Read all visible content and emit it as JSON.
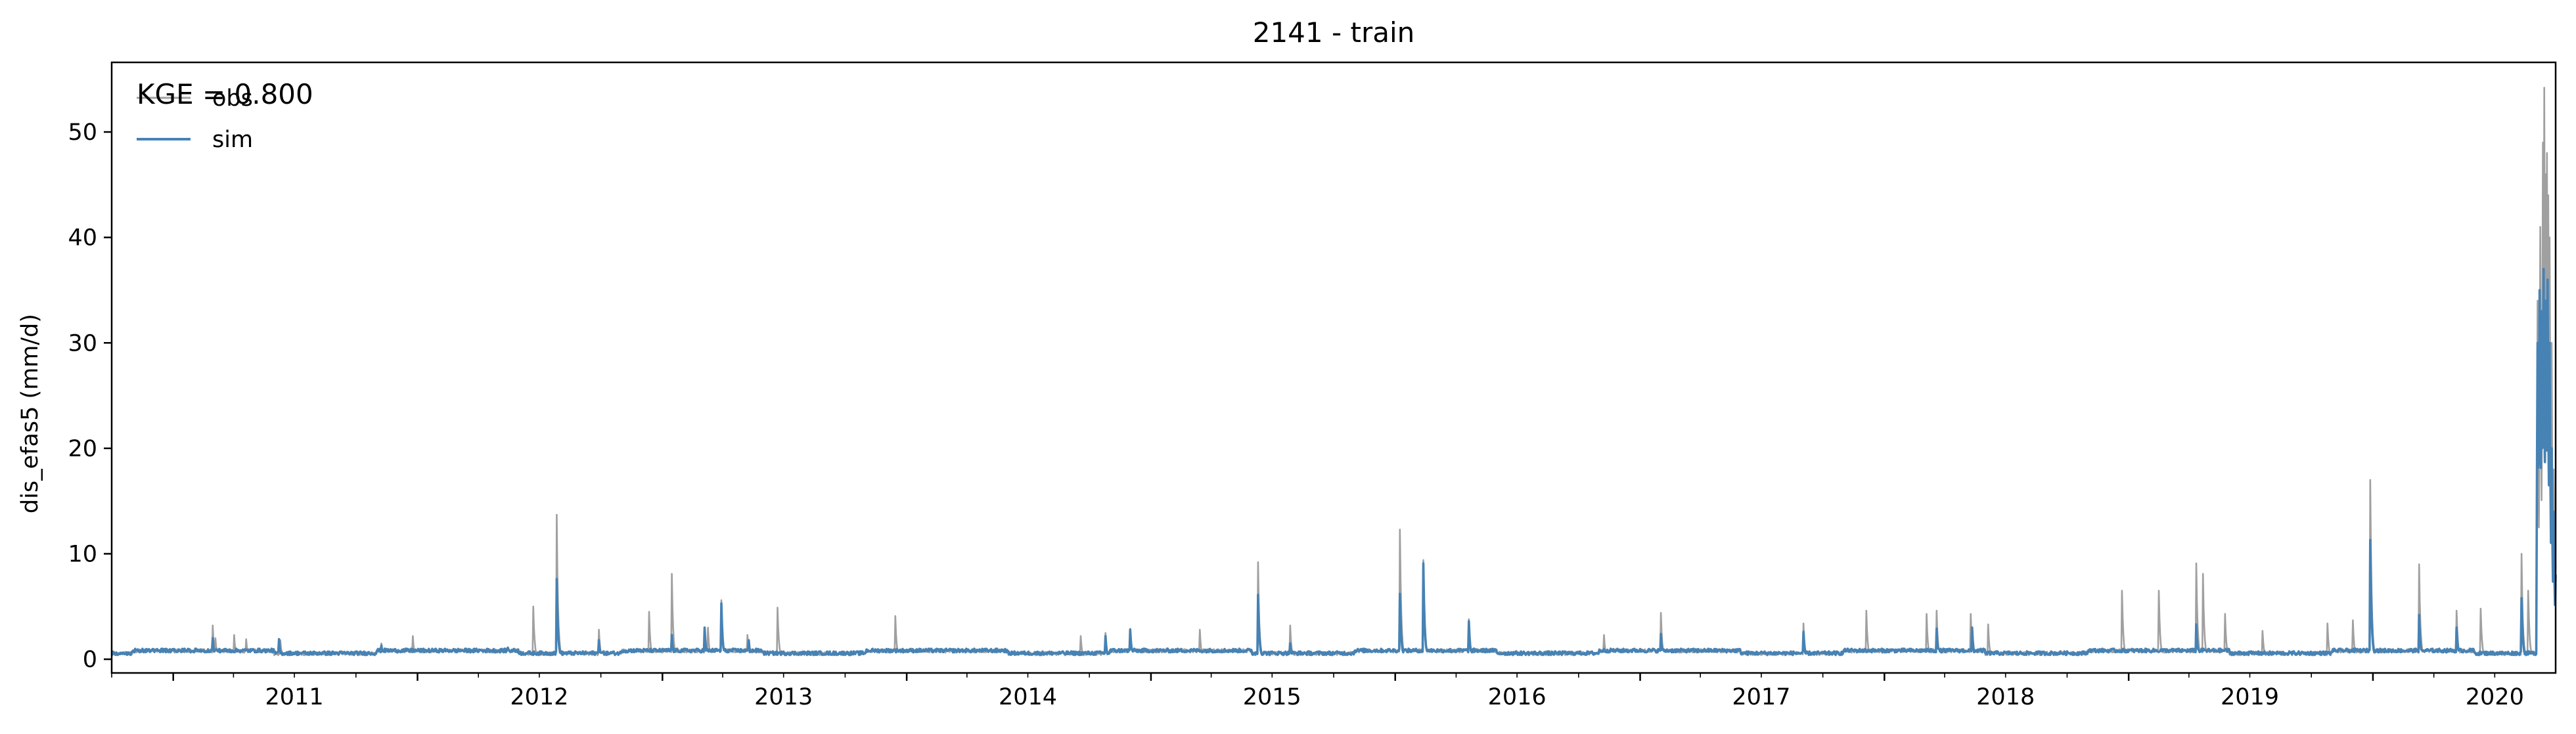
{
  "chart_data": {
    "type": "line",
    "title": "2141 - train",
    "xlabel": "",
    "ylabel": "dis_efas5 (mm/d)",
    "xlim": [
      "2010-10-01",
      "2020-09-30"
    ],
    "ylim": [
      -1.3,
      56.6
    ],
    "yticks": [
      0,
      10,
      20,
      30,
      40,
      50
    ],
    "xticks": [
      "2011",
      "2012",
      "2013",
      "2014",
      "2015",
      "2016",
      "2017",
      "2018",
      "2019",
      "2020"
    ],
    "grid": false,
    "legend": "upper left",
    "annotation": "KGE = 0.800",
    "series": [
      {
        "name": "obs",
        "color": "#a0a0a0",
        "base": 0.45,
        "points": [
          [
            "2011-03-01",
            3.2
          ],
          [
            "2011-03-05",
            2.0
          ],
          [
            "2011-04-02",
            2.3
          ],
          [
            "2011-04-20",
            1.9
          ],
          [
            "2011-06-10",
            1.8
          ],
          [
            "2011-11-08",
            1.5
          ],
          [
            "2011-12-25",
            2.2
          ],
          [
            "2012-06-22",
            5.0
          ],
          [
            "2012-07-27",
            13.7
          ],
          [
            "2012-09-28",
            2.8
          ],
          [
            "2012-12-12",
            4.5
          ],
          [
            "2013-01-15",
            8.1
          ],
          [
            "2013-03-10",
            3.0
          ],
          [
            "2013-03-30",
            5.6
          ],
          [
            "2013-05-08",
            2.3
          ],
          [
            "2013-06-22",
            4.9
          ],
          [
            "2013-12-15",
            4.1
          ],
          [
            "2014-09-18",
            2.2
          ],
          [
            "2014-10-25",
            2.5
          ],
          [
            "2014-12-01",
            2.9
          ],
          [
            "2015-03-15",
            2.8
          ],
          [
            "2015-06-10",
            9.2
          ],
          [
            "2015-07-28",
            3.2
          ],
          [
            "2016-01-08",
            12.3
          ],
          [
            "2016-02-12",
            9.4
          ],
          [
            "2016-04-20",
            3.8
          ],
          [
            "2016-11-08",
            2.3
          ],
          [
            "2017-02-01",
            4.4
          ],
          [
            "2017-09-02",
            3.4
          ],
          [
            "2017-12-05",
            4.6
          ],
          [
            "2018-03-05",
            4.3
          ],
          [
            "2018-03-20",
            4.6
          ],
          [
            "2018-05-10",
            4.3
          ],
          [
            "2018-06-05",
            3.3
          ],
          [
            "2018-12-22",
            6.5
          ],
          [
            "2019-02-15",
            6.5
          ],
          [
            "2019-04-12",
            9.1
          ],
          [
            "2019-04-22",
            8.1
          ],
          [
            "2019-05-25",
            4.3
          ],
          [
            "2019-07-20",
            2.7
          ],
          [
            "2019-10-25",
            3.4
          ],
          [
            "2019-12-02",
            3.7
          ],
          [
            "2019-12-28",
            17.0
          ],
          [
            "2020-03-10",
            9.0
          ],
          [
            "2020-05-05",
            4.6
          ],
          [
            "2020-06-10",
            4.8
          ],
          [
            "2020-08-10",
            10.0
          ],
          [
            "2020-08-20",
            6.5
          ],
          [
            "2020-09-03",
            34.0
          ],
          [
            "2020-09-07",
            41.0
          ],
          [
            "2020-09-11",
            49.0
          ],
          [
            "2020-09-13",
            54.2
          ],
          [
            "2020-09-15",
            46.0
          ],
          [
            "2020-09-17",
            48.0
          ],
          [
            "2020-09-19",
            44.0
          ],
          [
            "2020-09-21",
            40.0
          ],
          [
            "2020-09-24",
            30.0
          ],
          [
            "2020-09-27",
            18.0
          ],
          [
            "2020-09-30",
            9.0
          ]
        ]
      },
      {
        "name": "sim",
        "color": "#4682b4",
        "base": 0.5,
        "points": [
          [
            "2011-03-01",
            2.0
          ],
          [
            "2011-06-08",
            1.9
          ],
          [
            "2011-11-08",
            1.3
          ],
          [
            "2012-05-15",
            1.1
          ],
          [
            "2012-07-27",
            7.6
          ],
          [
            "2012-09-28",
            1.8
          ],
          [
            "2013-01-15",
            2.3
          ],
          [
            "2013-03-05",
            3.0
          ],
          [
            "2013-03-30",
            5.3
          ],
          [
            "2013-05-10",
            1.8
          ],
          [
            "2014-10-25",
            2.2
          ],
          [
            "2014-12-01",
            2.8
          ],
          [
            "2015-06-10",
            6.1
          ],
          [
            "2015-07-28",
            1.5
          ],
          [
            "2016-01-08",
            6.2
          ],
          [
            "2016-02-12",
            9.1
          ],
          [
            "2016-04-20",
            3.6
          ],
          [
            "2017-02-01",
            2.4
          ],
          [
            "2017-09-02",
            2.6
          ],
          [
            "2018-03-20",
            2.9
          ],
          [
            "2018-05-12",
            3.0
          ],
          [
            "2019-04-12",
            3.3
          ],
          [
            "2019-12-28",
            11.3
          ],
          [
            "2020-03-10",
            4.2
          ],
          [
            "2020-05-05",
            3.0
          ],
          [
            "2020-08-10",
            5.8
          ],
          [
            "2020-09-03",
            30.0
          ],
          [
            "2020-09-06",
            35.0
          ],
          [
            "2020-09-09",
            33.0
          ],
          [
            "2020-09-12",
            37.0
          ],
          [
            "2020-09-15",
            34.0
          ],
          [
            "2020-09-18",
            36.0
          ],
          [
            "2020-09-21",
            30.0
          ],
          [
            "2020-09-24",
            20.0
          ],
          [
            "2020-09-27",
            14.0
          ],
          [
            "2020-09-30",
            8.0
          ]
        ]
      }
    ]
  }
}
